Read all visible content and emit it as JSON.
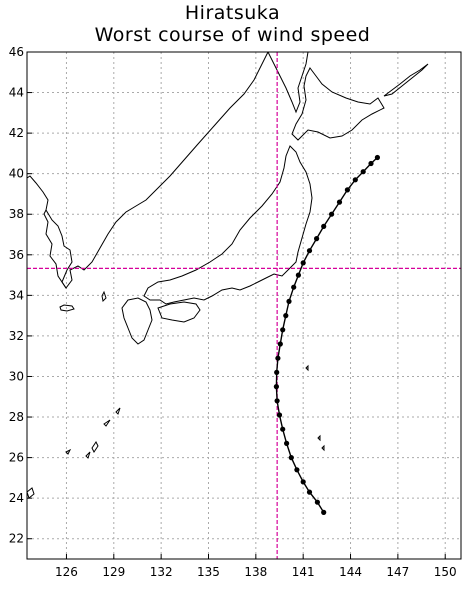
{
  "title": {
    "line1": "Hiratsuka",
    "line2": "Worst course of wind speed"
  },
  "map": {
    "projection": "equirectangular",
    "lon_range": [
      123.5,
      151
    ],
    "lat_range": [
      21,
      46
    ],
    "lon_ticks": [
      126,
      129,
      132,
      135,
      138,
      141,
      144,
      147,
      150
    ],
    "lat_ticks": [
      22,
      24,
      26,
      28,
      30,
      32,
      34,
      36,
      38,
      40,
      42,
      44,
      46
    ],
    "lon_tick_labels": [
      "126",
      "129",
      "132",
      "135",
      "138",
      "141",
      "144",
      "147",
      "150"
    ],
    "lat_tick_labels": [
      "22",
      "24",
      "26",
      "28",
      "30",
      "32",
      "34",
      "36",
      "38",
      "40",
      "42",
      "44",
      "46"
    ],
    "grid": true,
    "grid_color": "#aaaaaa",
    "crosshair_color": "#d6009a",
    "track_color": "#000000"
  },
  "location": {
    "name": "Hiratsuka",
    "lon": 139.35,
    "lat": 35.33
  },
  "track": {
    "lon": [
      142.3,
      141.9,
      141.4,
      141.0,
      140.6,
      140.25,
      139.95,
      139.7,
      139.5,
      139.35,
      139.3,
      139.32,
      139.4,
      139.55,
      139.7,
      139.9,
      140.1,
      140.4,
      140.7,
      141.0,
      141.4,
      141.85,
      142.3,
      142.8,
      143.3,
      143.8,
      144.3,
      144.8,
      145.3,
      145.7
    ],
    "lat": [
      23.3,
      23.8,
      24.3,
      24.8,
      25.4,
      26.0,
      26.7,
      27.4,
      28.1,
      28.8,
      29.5,
      30.2,
      30.9,
      31.6,
      32.3,
      33.0,
      33.7,
      34.4,
      35.0,
      35.6,
      36.2,
      36.8,
      37.4,
      38.0,
      38.6,
      39.2,
      39.7,
      40.1,
      40.5,
      40.8
    ]
  }
}
